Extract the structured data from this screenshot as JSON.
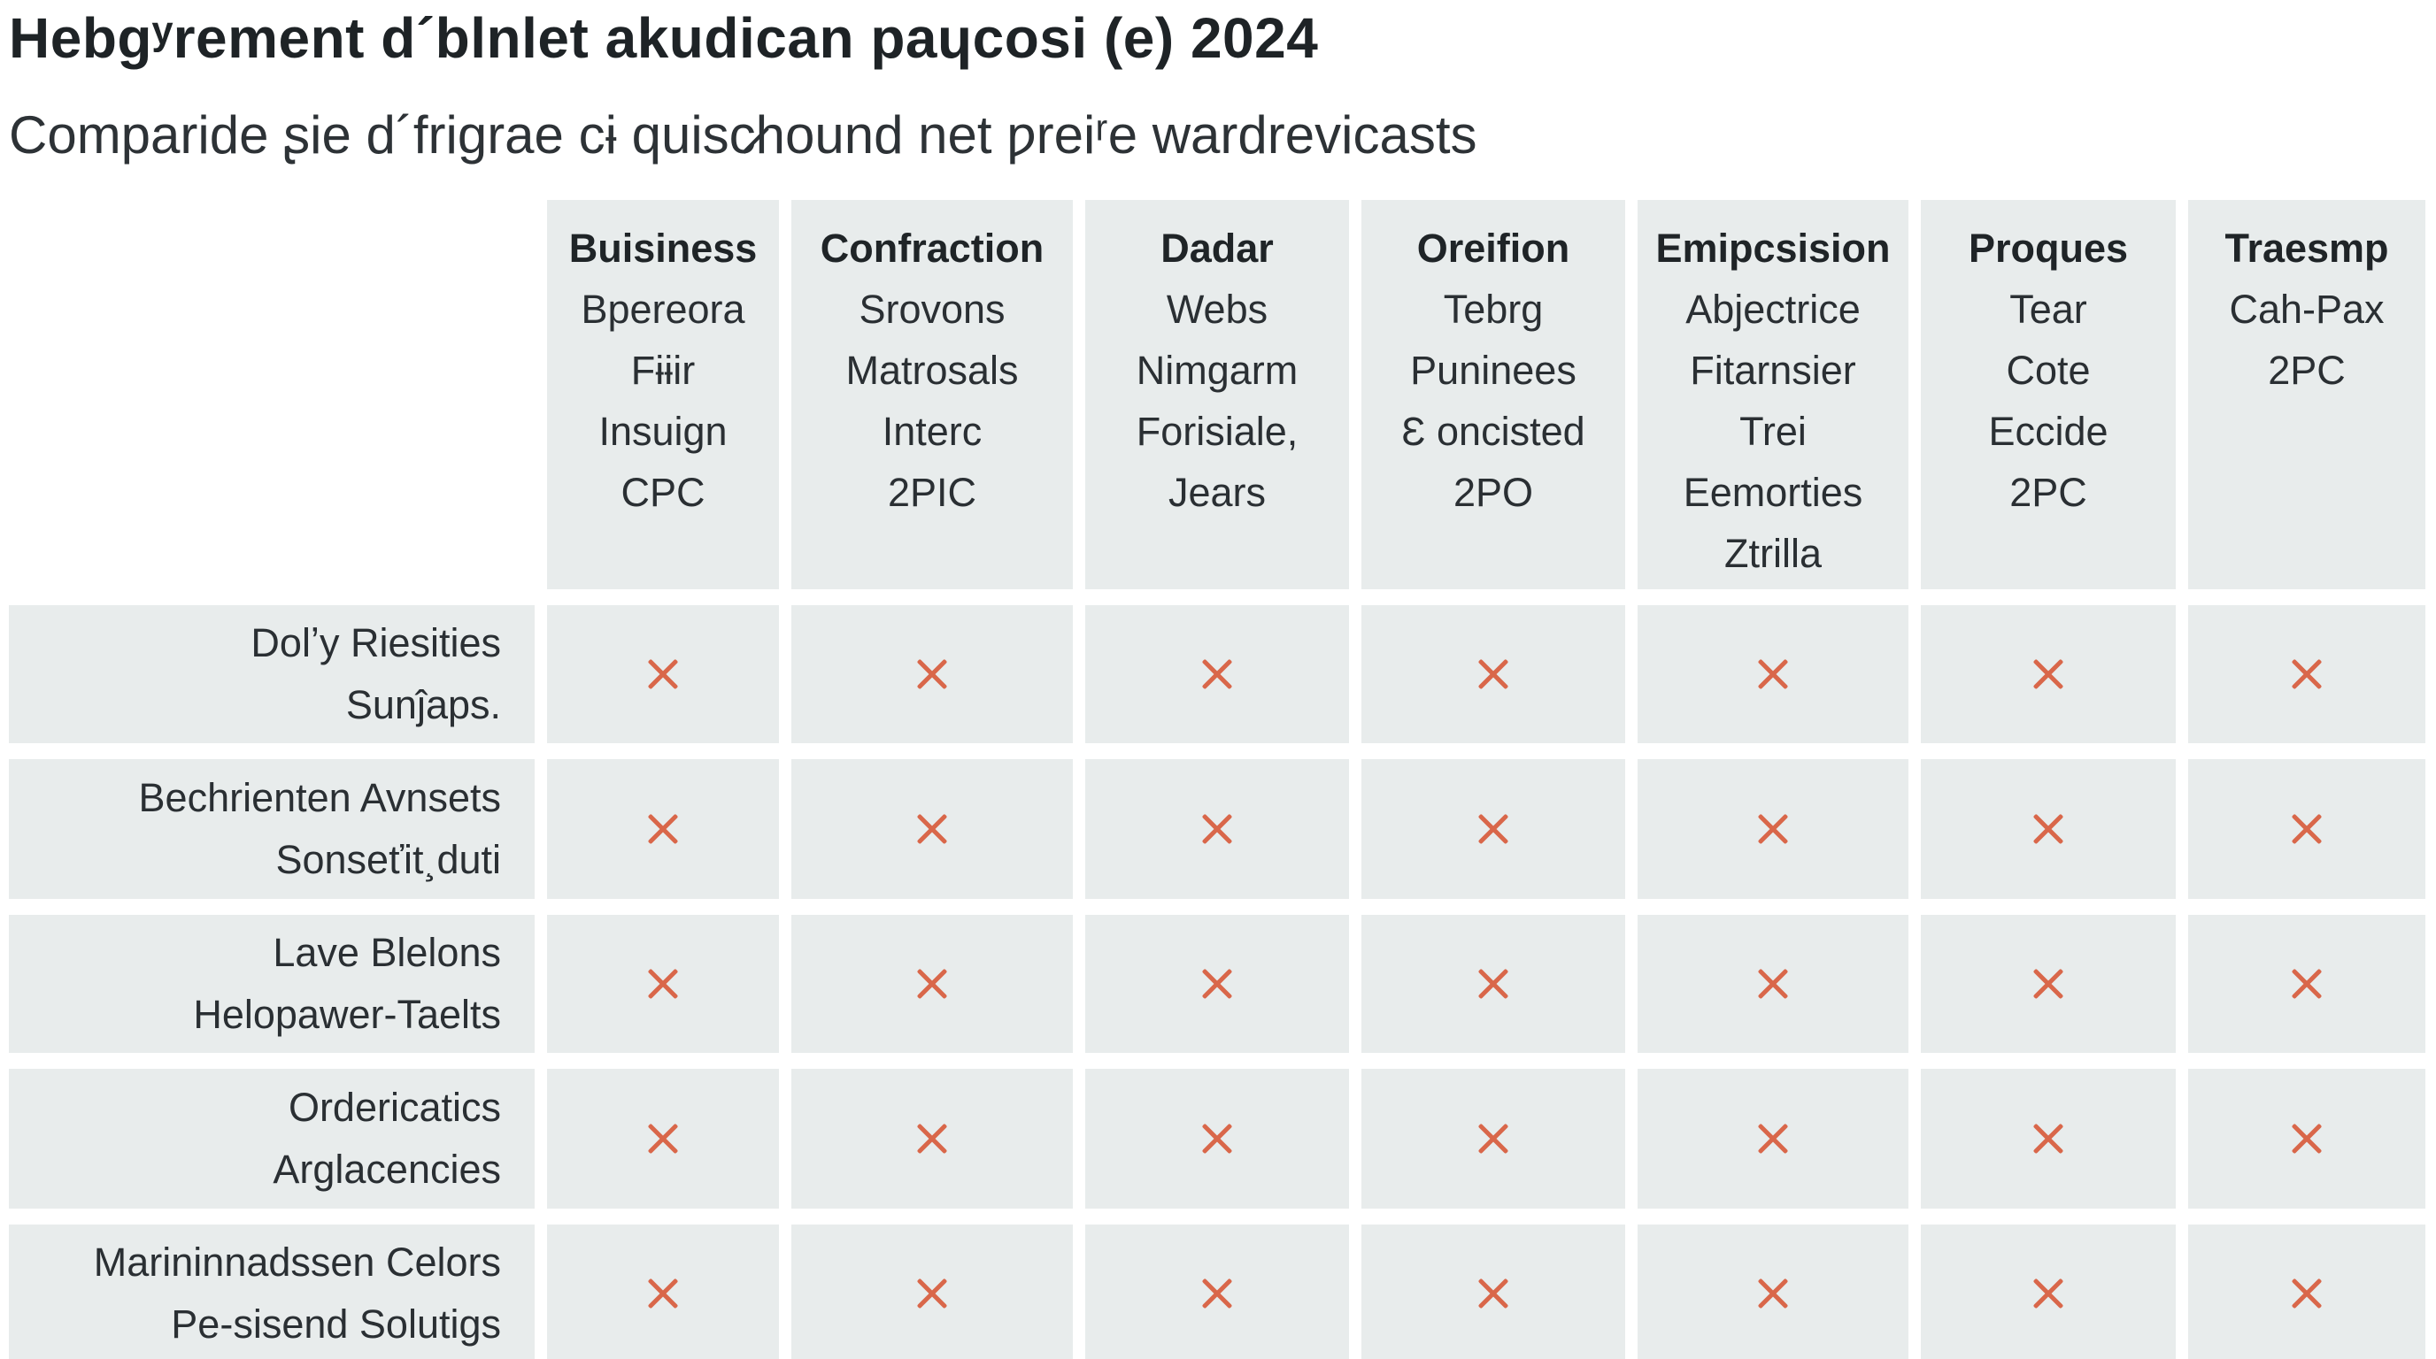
{
  "header": {
    "title": "Hebgʸrement d´blnlet akudican paɥcosi (e) 2024",
    "subtitle": "Comparide ʂie d´frigrae cɨ quisc̷hound net ƿreiʳe wardrevicasts"
  },
  "table": {
    "columns": [
      {
        "title": "Buisiness",
        "lines": [
          "Bpereora",
          "Fɨɨir",
          "Insuign",
          "CPC"
        ]
      },
      {
        "title": "Confraction",
        "lines": [
          "Srovons",
          "Matrosals",
          "Interc",
          "2PIC"
        ]
      },
      {
        "title": "Dadar",
        "lines": [
          "Webs",
          "Nimgarm",
          "Forisiale,",
          "Jears"
        ]
      },
      {
        "title": "Oreifion",
        "lines": [
          "Tebrg",
          "Puninees",
          "Ɛ oncisted",
          "2PO"
        ]
      },
      {
        "title": "Emipcsision",
        "lines": [
          "Abjectrice",
          "Fitarnsier",
          "Trei",
          "Eemorties",
          "Ztrilla"
        ]
      },
      {
        "title": "Proques",
        "lines": [
          "Tear",
          "Cote",
          "Eccide",
          "2PC"
        ]
      },
      {
        "title": "Traesmp",
        "lines": [
          "Cah-Pax",
          "2PC"
        ]
      }
    ],
    "rows": [
      {
        "label_lines": [
          "Dolʼy Riesities",
          "Sunĵaps."
        ],
        "marks": [
          "x",
          "x",
          "x",
          "x",
          "x",
          "x",
          "x"
        ]
      },
      {
        "label_lines": [
          "Bechrienten Avnsets",
          "Sonseťit¸duti"
        ],
        "marks": [
          "x",
          "x",
          "x",
          "x",
          "x",
          "x",
          "x"
        ]
      },
      {
        "label_lines": [
          "Lave Blelons",
          "Helopawer-Taelts"
        ],
        "marks": [
          "x",
          "x",
          "x",
          "x",
          "x",
          "x",
          "x"
        ]
      },
      {
        "label_lines": [
          "Ordericatics",
          "Arglacencies"
        ],
        "marks": [
          "x",
          "x",
          "x",
          "x",
          "x",
          "x",
          "x"
        ]
      },
      {
        "label_lines": [
          "Marininnadssen Celors",
          "Pe-sisend Solutigs"
        ],
        "marks": [
          "x",
          "x",
          "x",
          "x",
          "x",
          "x",
          "x"
        ]
      }
    ],
    "mark_icon": "cross-mark-icon"
  },
  "colors": {
    "cell_background": "#e8ecec",
    "cross_mark": "#d9674a",
    "text": "#2a2f33"
  }
}
